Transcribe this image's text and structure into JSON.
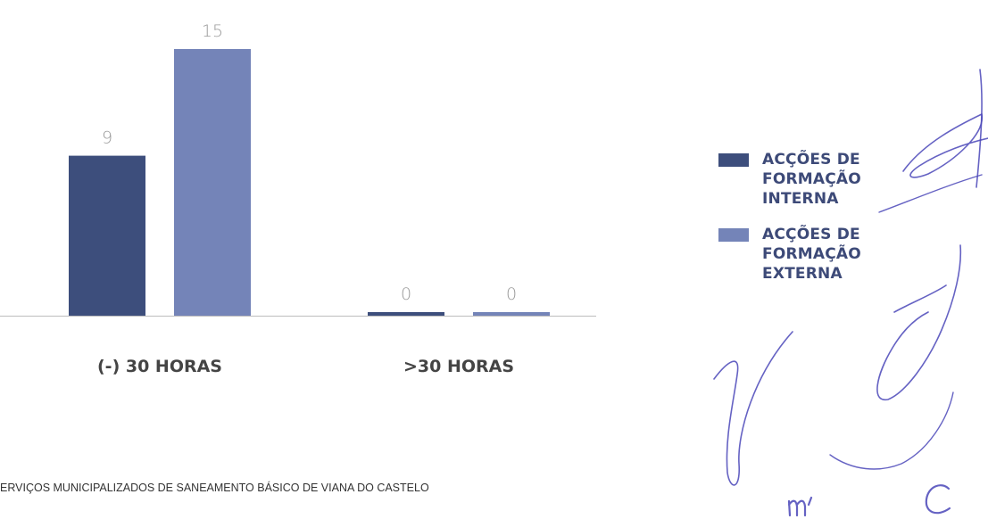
{
  "chart_data": {
    "type": "bar",
    "categories": [
      "(-) 30 HORAS",
      ">30 HORAS"
    ],
    "series": [
      {
        "name": "ACÇÕES DE FORMAÇÃO INTERNA",
        "values": [
          9,
          0
        ]
      },
      {
        "name": "ACÇÕES DE FORMAÇÃO EXTERNA",
        "values": [
          15,
          0
        ]
      }
    ],
    "value_labels": [
      [
        "9",
        "0"
      ],
      [
        "15",
        "0"
      ]
    ],
    "ylim": [
      0,
      15
    ],
    "grid": false,
    "legend_position": "right"
  },
  "legend": {
    "items": [
      {
        "lines": [
          "ACÇÕES DE",
          "FORMAÇÃO",
          "INTERNA"
        ],
        "color": "#3d4e7c"
      },
      {
        "lines": [
          "ACÇÕES DE",
          "FORMAÇÃO",
          "EXTERNA"
        ],
        "color": "#7484b8"
      }
    ]
  },
  "footer": {
    "text": "ERVIÇOS MUNICIPALIZADOS DE SANEAMENTO BÁSICO DE VIANA DO CASTELO"
  },
  "colors": {
    "series_internal": "#3d4e7c",
    "series_external": "#7484b8",
    "signature_ink": "#4a46b8",
    "axis": "#bdbdbd"
  }
}
